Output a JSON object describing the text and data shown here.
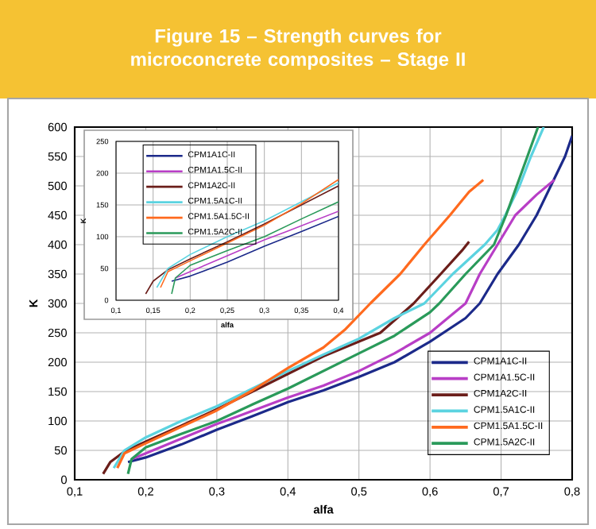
{
  "chart_data": [
    {
      "type": "line",
      "title": "Figure 15 – Strength curves for microconcrete composites – Stage II",
      "xlabel": "alfa",
      "ylabel": "K",
      "xlim": [
        0.1,
        0.8
      ],
      "ylim": [
        0,
        600
      ],
      "xticks": [
        {
          "value": 0.1,
          "label": "0,1"
        },
        {
          "value": 0.2,
          "label": "0,2"
        },
        {
          "value": 0.3,
          "label": "0,3"
        },
        {
          "value": 0.4,
          "label": "0,4"
        },
        {
          "value": 0.5,
          "label": "0,5"
        },
        {
          "value": 0.6,
          "label": "0,6"
        },
        {
          "value": 0.7,
          "label": "0,7"
        },
        {
          "value": 0.8,
          "label": "0,8"
        }
      ],
      "yticks": [
        0,
        50,
        100,
        150,
        200,
        250,
        300,
        350,
        400,
        450,
        500,
        550,
        600
      ],
      "grid": true,
      "legend": "bottom right",
      "series": [
        {
          "name": "CPM1A1C-II",
          "color": "#1c2a8a",
          "x": [
            0.175,
            0.2,
            0.25,
            0.3,
            0.35,
            0.4,
            0.45,
            0.5,
            0.55,
            0.6,
            0.65,
            0.67,
            0.695,
            0.725,
            0.75,
            0.77,
            0.79,
            0.8
          ],
          "values": [
            30,
            38,
            60,
            85,
            108,
            132,
            152,
            175,
            200,
            235,
            275,
            300,
            350,
            400,
            450,
            500,
            550,
            585
          ]
        },
        {
          "name": "CPM1A1.5C-II",
          "color": "#b83ec6",
          "x": [
            0.18,
            0.2,
            0.25,
            0.3,
            0.33,
            0.4,
            0.45,
            0.5,
            0.55,
            0.6,
            0.63,
            0.65,
            0.67,
            0.695,
            0.72,
            0.75,
            0.775
          ],
          "values": [
            35,
            45,
            70,
            95,
            108,
            140,
            160,
            185,
            215,
            250,
            280,
            300,
            350,
            400,
            450,
            485,
            510
          ]
        },
        {
          "name": "CPM1A2C-II",
          "color": "#6b1e1a",
          "x": [
            0.14,
            0.15,
            0.17,
            0.2,
            0.25,
            0.3,
            0.35,
            0.4,
            0.45,
            0.5,
            0.53,
            0.577,
            0.615,
            0.645,
            0.655
          ],
          "values": [
            10,
            30,
            48,
            65,
            92,
            120,
            150,
            180,
            210,
            235,
            250,
            300,
            350,
            390,
            405
          ]
        },
        {
          "name": "CPM1.5A1C-II",
          "color": "#5bd3e0",
          "x": [
            0.155,
            0.17,
            0.2,
            0.25,
            0.3,
            0.35,
            0.4,
            0.45,
            0.5,
            0.55,
            0.592,
            0.632,
            0.677,
            0.695,
            0.706,
            0.726,
            0.742,
            0.76
          ],
          "values": [
            20,
            50,
            72,
            100,
            125,
            155,
            185,
            213,
            240,
            275,
            300,
            350,
            400,
            425,
            450,
            500,
            550,
            600
          ]
        },
        {
          "name": "CPM1.5A1.5C-II",
          "color": "#ff6a1e",
          "x": [
            0.16,
            0.17,
            0.2,
            0.25,
            0.3,
            0.35,
            0.4,
            0.45,
            0.48,
            0.516,
            0.558,
            0.592,
            0.628,
            0.655,
            0.675
          ],
          "values": [
            20,
            45,
            62,
            90,
            118,
            152,
            190,
            225,
            255,
            300,
            350,
            400,
            450,
            490,
            510
          ]
        },
        {
          "name": "CPM1.5A2C-II",
          "color": "#2a9a5a",
          "x": [
            0.175,
            0.18,
            0.2,
            0.25,
            0.3,
            0.35,
            0.4,
            0.45,
            0.5,
            0.55,
            0.6,
            0.613,
            0.65,
            0.69,
            0.707,
            0.722,
            0.737,
            0.752
          ],
          "values": [
            10,
            35,
            55,
            78,
            100,
            128,
            155,
            185,
            215,
            245,
            285,
            300,
            350,
            400,
            450,
            500,
            550,
            600
          ]
        }
      ]
    },
    {
      "type": "line",
      "xlabel": "alfa",
      "ylabel": "K",
      "xlim": [
        0.1,
        0.4
      ],
      "ylim": [
        0,
        250
      ],
      "xticks": [
        {
          "value": 0.1,
          "label": "0,1"
        },
        {
          "value": 0.15,
          "label": "0,15"
        },
        {
          "value": 0.2,
          "label": "0,2"
        },
        {
          "value": 0.25,
          "label": "0,25"
        },
        {
          "value": 0.3,
          "label": "0,3"
        },
        {
          "value": 0.35,
          "label": "0,35"
        },
        {
          "value": 0.4,
          "label": "0,4"
        }
      ],
      "yticks": [
        0,
        50,
        100,
        150,
        200,
        250
      ],
      "grid": true,
      "legend": "top left",
      "series": [
        {
          "name": "CPM1A1C-II",
          "color": "#1c2a8a",
          "x": [
            0.175,
            0.2,
            0.25,
            0.3,
            0.35,
            0.4
          ],
          "values": [
            30,
            38,
            60,
            85,
            108,
            132
          ]
        },
        {
          "name": "CPM1A1.5C-II",
          "color": "#b83ec6",
          "x": [
            0.18,
            0.2,
            0.25,
            0.3,
            0.33,
            0.4
          ],
          "values": [
            35,
            45,
            70,
            95,
            108,
            140
          ]
        },
        {
          "name": "CPM1A2C-II",
          "color": "#6b1e1a",
          "x": [
            0.14,
            0.15,
            0.17,
            0.2,
            0.25,
            0.3,
            0.35,
            0.4
          ],
          "values": [
            10,
            30,
            48,
            65,
            92,
            120,
            150,
            180
          ]
        },
        {
          "name": "CPM1.5A1C-II",
          "color": "#5bd3e0",
          "x": [
            0.155,
            0.17,
            0.2,
            0.25,
            0.3,
            0.35,
            0.4
          ],
          "values": [
            20,
            50,
            72,
            100,
            125,
            155,
            185
          ]
        },
        {
          "name": "CPM1.5A1.5C-II",
          "color": "#ff6a1e",
          "x": [
            0.16,
            0.17,
            0.2,
            0.25,
            0.3,
            0.35,
            0.4
          ],
          "values": [
            20,
            45,
            62,
            90,
            118,
            152,
            190
          ]
        },
        {
          "name": "CPM1.5A2C-II",
          "color": "#2a9a5a",
          "x": [
            0.175,
            0.18,
            0.2,
            0.25,
            0.3,
            0.35,
            0.4
          ],
          "values": [
            10,
            35,
            55,
            78,
            100,
            128,
            155
          ]
        }
      ]
    }
  ]
}
